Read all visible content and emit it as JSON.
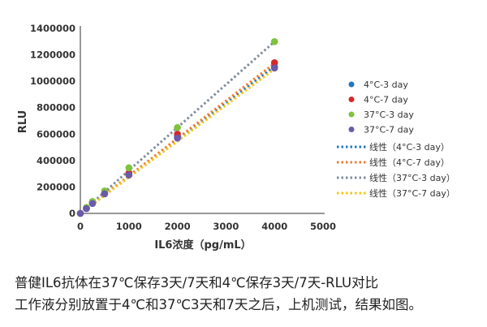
{
  "chart_data": {
    "type": "scatter",
    "xlabel": "IL6浓度（pg/mL）",
    "ylabel": "RLU",
    "xlim": [
      0,
      5000
    ],
    "ylim": [
      0,
      1400000
    ],
    "xticks": [
      "0",
      "1000",
      "2000",
      "3000",
      "4000",
      "5000"
    ],
    "yticks": [
      "0",
      "200000",
      "400000",
      "600000",
      "800000",
      "1000000",
      "1200000",
      "1400000"
    ],
    "grid": false,
    "legend_position": "right",
    "x": [
      0,
      125,
      250,
      500,
      1000,
      2000,
      4000
    ],
    "series": [
      {
        "name": "4°C-3 day",
        "color": "#1f77c4",
        "values": [
          0,
          38000,
          78000,
          150000,
          295000,
          580000,
          1110000
        ]
      },
      {
        "name": "4°C-7 day",
        "color": "#d62728",
        "values": [
          0,
          40000,
          80000,
          155000,
          305000,
          600000,
          1140000
        ]
      },
      {
        "name": "37°C-3 day",
        "color": "#7dc33b",
        "values": [
          0,
          45000,
          90000,
          170000,
          345000,
          650000,
          1300000
        ]
      },
      {
        "name": "37°C-7 day",
        "color": "#6a5aa8",
        "values": [
          0,
          36000,
          75000,
          148000,
          290000,
          570000,
          1100000
        ]
      }
    ],
    "trendlines": [
      {
        "name": "线性（4°C-3 day）",
        "color": "#1f77c4",
        "slope": 277.5
      },
      {
        "name": "线性（4°C-7 day）",
        "color": "#ed7d31",
        "slope": 284
      },
      {
        "name": "线性（37°C-3 day）",
        "color": "#7f8c99",
        "slope": 325
      },
      {
        "name": "线性（37°C-7 day）",
        "color": "#f5c518",
        "slope": 273
      }
    ]
  },
  "caption": {
    "line1": "普健IL6抗体在37℃保存3天/7天和4℃保存3天/7天-RLU对比",
    "line2": "工作液分别放置于4℃和37℃3天和7天之后，上机测试，结果如图。"
  }
}
